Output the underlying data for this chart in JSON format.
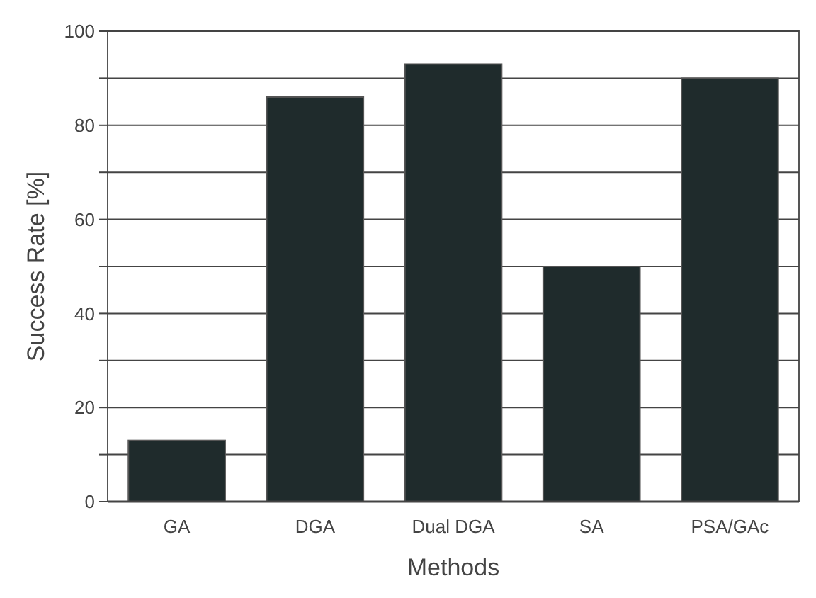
{
  "chart_data": {
    "type": "bar",
    "xlabel": "Methods",
    "ylabel": "Success Rate [%]",
    "categories": [
      "GA",
      "DGA",
      "Dual DGA",
      "SA",
      "PSA/GAc"
    ],
    "values": [
      13,
      86,
      93,
      50,
      90
    ],
    "color": "#1f2b2c",
    "ylim": [
      0,
      100
    ],
    "yticks": [
      0,
      {
        "value": 10,
        "label": null
      },
      20,
      {
        "value": 30,
        "label": null
      },
      40,
      {
        "value": 50,
        "label": null
      },
      60,
      {
        "value": 70,
        "label": null
      },
      80,
      {
        "value": 90,
        "label": null
      },
      100
    ],
    "grid": true
  }
}
